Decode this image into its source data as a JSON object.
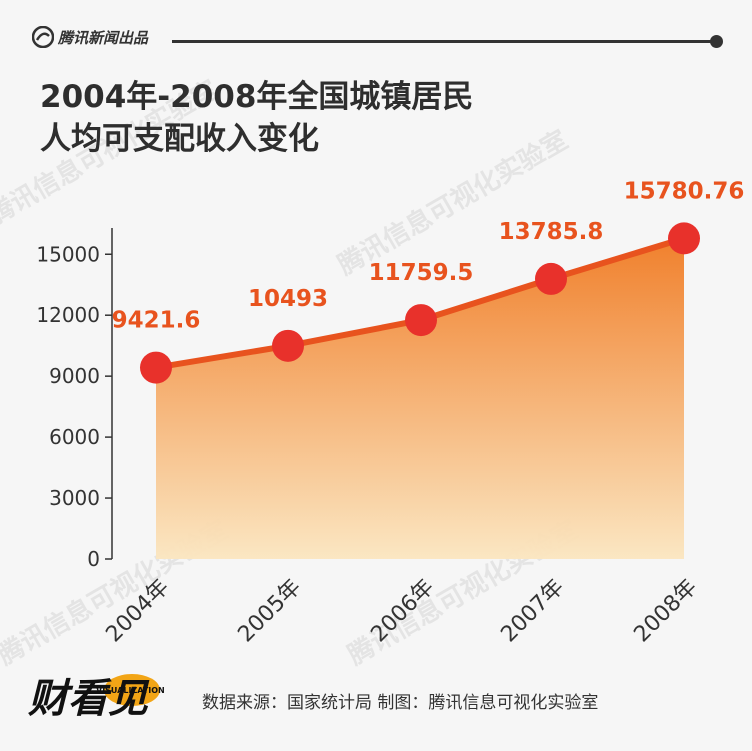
{
  "brand": {
    "name": "腾讯新闻出品"
  },
  "title": {
    "line1": "2004年-2008年全国城镇居民",
    "line2": "人均可支配收入变化"
  },
  "footer": {
    "logo_main": "财看见",
    "logo_sub": "VISUALIZATION",
    "source": "数据来源：国家统计局  制图：腾讯信息可视化实验室"
  },
  "watermark": "腾讯信息可视化实验室",
  "colors": {
    "line": "#e8531e",
    "marker": "#e8312b",
    "label": "#e8531e",
    "area_top": "#f07a22",
    "area_bottom": "#fbe6c0",
    "axis": "#333333",
    "background": "#f6f6f6"
  },
  "chart_data": {
    "type": "area",
    "categories": [
      "2004年",
      "2005年",
      "2006年",
      "2007年",
      "2008年"
    ],
    "series": [
      {
        "values": [
          9421.6,
          10493,
          11759.5,
          13785.8,
          15780.76
        ]
      }
    ],
    "data_labels": [
      "9421.6",
      "10493",
      "11759.5",
      "13785.8",
      "15780.76"
    ],
    "yticks": [
      0,
      3000,
      6000,
      9000,
      12000,
      15000
    ],
    "ylim": [
      0,
      16000
    ],
    "grid": false
  }
}
